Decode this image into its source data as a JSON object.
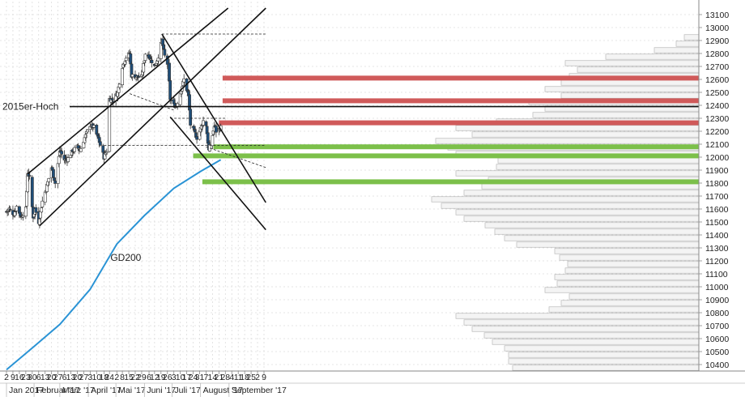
{
  "chart_data": {
    "type": "candlestick",
    "title": "",
    "ylim": [
      10300,
      13150
    ],
    "y_ticks": [
      10400,
      10500,
      10600,
      10700,
      10800,
      10900,
      11000,
      11100,
      11200,
      11300,
      11400,
      11500,
      11600,
      11700,
      11800,
      11900,
      12000,
      12100,
      12200,
      12300,
      12400,
      12500,
      12600,
      12700,
      12800,
      12900,
      13000,
      13100
    ],
    "x_ticks": [
      {
        "label": "2",
        "date": "2017-01-02"
      },
      {
        "label": "9",
        "date": "2017-01-09"
      },
      {
        "label": "16",
        "date": "2017-01-16"
      },
      {
        "label": "23",
        "date": "2017-01-23"
      },
      {
        "label": "30",
        "date": "2017-01-30"
      },
      {
        "label": "6",
        "date": "2017-02-06"
      },
      {
        "label": "13",
        "date": "2017-02-13"
      },
      {
        "label": "20",
        "date": "2017-02-20"
      },
      {
        "label": "27",
        "date": "2017-02-27"
      },
      {
        "label": "6",
        "date": "2017-03-06"
      },
      {
        "label": "13",
        "date": "2017-03-13"
      },
      {
        "label": "20",
        "date": "2017-03-20"
      },
      {
        "label": "27",
        "date": "2017-03-27"
      },
      {
        "label": "3",
        "date": "2017-04-03"
      },
      {
        "label": "10",
        "date": "2017-04-10"
      },
      {
        "label": "18",
        "date": "2017-04-18"
      },
      {
        "label": "24",
        "date": "2017-04-24"
      },
      {
        "label": "2",
        "date": "2017-05-02"
      },
      {
        "label": "8",
        "date": "2017-05-08"
      },
      {
        "label": "15",
        "date": "2017-05-15"
      },
      {
        "label": "22",
        "date": "2017-05-22"
      },
      {
        "label": "29",
        "date": "2017-05-29"
      },
      {
        "label": "6",
        "date": "2017-06-06"
      },
      {
        "label": "12",
        "date": "2017-06-12"
      },
      {
        "label": "19",
        "date": "2017-06-19"
      },
      {
        "label": "26",
        "date": "2017-06-26"
      },
      {
        "label": "3",
        "date": "2017-07-03"
      },
      {
        "label": "10",
        "date": "2017-07-10"
      },
      {
        "label": "17",
        "date": "2017-07-17"
      },
      {
        "label": "24",
        "date": "2017-07-24"
      },
      {
        "label": "31",
        "date": "2017-07-31"
      },
      {
        "label": "7",
        "date": "2017-08-07"
      },
      {
        "label": "14",
        "date": "2017-08-14"
      },
      {
        "label": "21",
        "date": "2017-08-21"
      },
      {
        "label": "28",
        "date": "2017-08-28"
      },
      {
        "label": "4",
        "date": "2017-09-04"
      },
      {
        "label": "11",
        "date": "2017-09-11"
      },
      {
        "label": "18",
        "date": "2017-09-18"
      },
      {
        "label": "25",
        "date": "2017-09-25"
      },
      {
        "label": "2",
        "date": "2017-10-02"
      },
      {
        "label": "9",
        "date": "2017-10-09"
      }
    ],
    "month_labels": [
      {
        "label": "Jan 2017",
        "date": "2017-01-02"
      },
      {
        "label": "Februar '17",
        "date": "2017-02-01"
      },
      {
        "label": "März '17",
        "date": "2017-03-01"
      },
      {
        "label": "April '17",
        "date": "2017-04-01"
      },
      {
        "label": "Mai '17",
        "date": "2017-05-01"
      },
      {
        "label": "Juni '17",
        "date": "2017-06-01"
      },
      {
        "label": "Juli '17",
        "date": "2017-07-01"
      },
      {
        "label": "August '17",
        "date": "2017-08-01"
      },
      {
        "label": "September '17",
        "date": "2017-09-01"
      }
    ],
    "price_anchors": [
      [
        "2017-01-02",
        11580
      ],
      [
        "2017-01-05",
        11600
      ],
      [
        "2017-01-10",
        11560
      ],
      [
        "2017-01-13",
        11620
      ],
      [
        "2017-01-18",
        11540
      ],
      [
        "2017-01-23",
        11600
      ],
      [
        "2017-01-25",
        11880
      ],
      [
        "2017-01-27",
        11840
      ],
      [
        "2017-01-31",
        11540
      ],
      [
        "2017-02-02",
        11600
      ],
      [
        "2017-02-06",
        11500
      ],
      [
        "2017-02-10",
        11660
      ],
      [
        "2017-02-15",
        11780
      ],
      [
        "2017-02-20",
        11920
      ],
      [
        "2017-02-24",
        11800
      ],
      [
        "2017-03-01",
        12050
      ],
      [
        "2017-03-06",
        11980
      ],
      [
        "2017-03-10",
        11990
      ],
      [
        "2017-03-15",
        12050
      ],
      [
        "2017-03-20",
        12080
      ],
      [
        "2017-03-23",
        12050
      ],
      [
        "2017-03-28",
        12150
      ],
      [
        "2017-04-03",
        12250
      ],
      [
        "2017-04-07",
        12230
      ],
      [
        "2017-04-12",
        12140
      ],
      [
        "2017-04-18",
        12000
      ],
      [
        "2017-04-21",
        12050
      ],
      [
        "2017-04-24",
        12450
      ],
      [
        "2017-04-28",
        12440
      ],
      [
        "2017-05-03",
        12500
      ],
      [
        "2017-05-08",
        12700
      ],
      [
        "2017-05-12",
        12770
      ],
      [
        "2017-05-16",
        12800
      ],
      [
        "2017-05-18",
        12630
      ],
      [
        "2017-05-24",
        12620
      ],
      [
        "2017-05-29",
        12620
      ],
      [
        "2017-06-02",
        12800
      ],
      [
        "2017-06-06",
        12780
      ],
      [
        "2017-06-12",
        12700
      ],
      [
        "2017-06-15",
        12750
      ],
      [
        "2017-06-20",
        12900
      ],
      [
        "2017-06-23",
        12780
      ],
      [
        "2017-06-27",
        12700
      ],
      [
        "2017-06-29",
        12450
      ],
      [
        "2017-07-03",
        12400
      ],
      [
        "2017-07-06",
        12400
      ],
      [
        "2017-07-10",
        12500
      ],
      [
        "2017-07-14",
        12600
      ],
      [
        "2017-07-19",
        12470
      ],
      [
        "2017-07-21",
        12250
      ],
      [
        "2017-07-25",
        12200
      ],
      [
        "2017-07-28",
        12150
      ],
      [
        "2017-08-01",
        12220
      ],
      [
        "2017-08-04",
        12280
      ],
      [
        "2017-08-07",
        12250
      ],
      [
        "2017-08-10",
        12050
      ],
      [
        "2017-08-14",
        12170
      ],
      [
        "2017-08-16",
        12240
      ],
      [
        "2017-08-18",
        12200
      ],
      [
        "2017-08-23",
        12230
      ]
    ],
    "gd200": [
      [
        "2017-01-02",
        10360
      ],
      [
        "2017-02-01",
        10540
      ],
      [
        "2017-03-01",
        10710
      ],
      [
        "2017-04-03",
        10980
      ],
      [
        "2017-05-02",
        11330
      ],
      [
        "2017-06-01",
        11550
      ],
      [
        "2017-07-03",
        11760
      ],
      [
        "2017-08-01",
        11890
      ],
      [
        "2017-08-23",
        11980
      ]
    ],
    "gd200_label": "GD200",
    "horizontal_line": {
      "label": "2015er-Hoch",
      "value": 12390
    },
    "trend_lines": [
      {
        "from": [
          "2017-01-25",
          11870
        ],
        "to": [
          "2017-08-31",
          13150
        ]
      },
      {
        "from": [
          "2017-02-07",
          11470
        ],
        "to": [
          "2017-10-11",
          13150
        ]
      },
      {
        "from": [
          "2017-06-20",
          12950
        ],
        "to": [
          "2017-10-11",
          11650
        ]
      },
      {
        "from": [
          "2017-06-29",
          12310
        ],
        "to": [
          "2017-10-11",
          11440
        ]
      }
    ],
    "dashed_lines": [
      {
        "from": [
          "2017-06-20",
          12950
        ],
        "to": [
          "2017-10-11",
          12950
        ]
      },
      {
        "from": [
          "2017-05-16",
          12490
        ],
        "to": [
          "2017-07-04",
          12360
        ]
      },
      {
        "from": [
          "2017-04-18",
          12090
        ],
        "to": [
          "2017-10-11",
          12090
        ]
      },
      {
        "from": [
          "2017-06-29",
          12300
        ],
        "to": [
          "2017-08-28",
          12300
        ]
      },
      {
        "from": [
          "2017-08-07",
          12080
        ],
        "to": [
          "2017-10-11",
          11920
        ]
      }
    ],
    "resistance_zones": [
      {
        "from": "2017-08-25",
        "to": "2017-10-11",
        "value": 12610
      },
      {
        "from": "2017-08-25",
        "to": "2017-10-11",
        "value": 12435
      },
      {
        "from": "2017-08-21",
        "to": "2017-10-11",
        "value": 12265
      }
    ],
    "support_zones": [
      {
        "from": "2017-08-15",
        "to": "2017-10-11",
        "value": 12080
      },
      {
        "from": "2017-07-24",
        "to": "2017-10-11",
        "value": 12010
      },
      {
        "from": "2017-08-03",
        "to": "2017-10-11",
        "value": 11810
      }
    ],
    "volume_profile": [
      [
        10350,
        230
      ],
      [
        10400,
        235
      ],
      [
        10450,
        235
      ],
      [
        10500,
        240
      ],
      [
        10550,
        255
      ],
      [
        10600,
        265
      ],
      [
        10650,
        280
      ],
      [
        10700,
        290
      ],
      [
        10750,
        300
      ],
      [
        10800,
        185
      ],
      [
        10850,
        170
      ],
      [
        10900,
        160
      ],
      [
        10950,
        190
      ],
      [
        11000,
        175
      ],
      [
        11050,
        178
      ],
      [
        11100,
        165
      ],
      [
        11150,
        162
      ],
      [
        11200,
        172
      ],
      [
        11250,
        178
      ],
      [
        11300,
        225
      ],
      [
        11350,
        240
      ],
      [
        11400,
        252
      ],
      [
        11450,
        264
      ],
      [
        11500,
        290
      ],
      [
        11550,
        300
      ],
      [
        11600,
        318
      ],
      [
        11650,
        330
      ],
      [
        11700,
        290
      ],
      [
        11750,
        268
      ],
      [
        11800,
        260
      ],
      [
        11850,
        300
      ],
      [
        11900,
        250
      ],
      [
        11950,
        248
      ],
      [
        12000,
        300
      ],
      [
        12050,
        310
      ],
      [
        12100,
        325
      ],
      [
        12150,
        280
      ],
      [
        12200,
        300
      ],
      [
        12250,
        250
      ],
      [
        12300,
        205
      ],
      [
        12350,
        190
      ],
      [
        12400,
        210
      ],
      [
        12450,
        170
      ],
      [
        12500,
        190
      ],
      [
        12550,
        170
      ],
      [
        12600,
        160
      ],
      [
        12650,
        150
      ],
      [
        12700,
        165
      ],
      [
        12750,
        115
      ],
      [
        12800,
        55
      ],
      [
        12850,
        28
      ],
      [
        12900,
        18
      ]
    ]
  }
}
